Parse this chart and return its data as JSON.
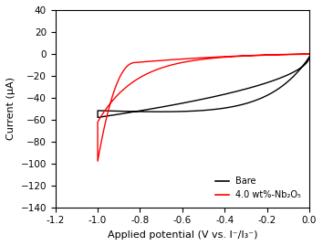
{
  "title": "",
  "xlabel": "Applied potential (V vs. I⁻/I₃⁻)",
  "ylabel": "Current (μA)",
  "xlim": [
    -1.2,
    0.0
  ],
  "ylim": [
    -140,
    40
  ],
  "xticks": [
    -1.2,
    -1.0,
    -0.8,
    -0.6,
    -0.4,
    -0.2,
    0.0
  ],
  "yticks": [
    -140,
    -120,
    -100,
    -80,
    -60,
    -40,
    -20,
    0,
    20,
    40
  ],
  "legend": [
    "Bare",
    "4.0 wt%-Nb₂O₅"
  ],
  "line_colors": [
    "black",
    "red"
  ],
  "background_color": "#ffffff"
}
